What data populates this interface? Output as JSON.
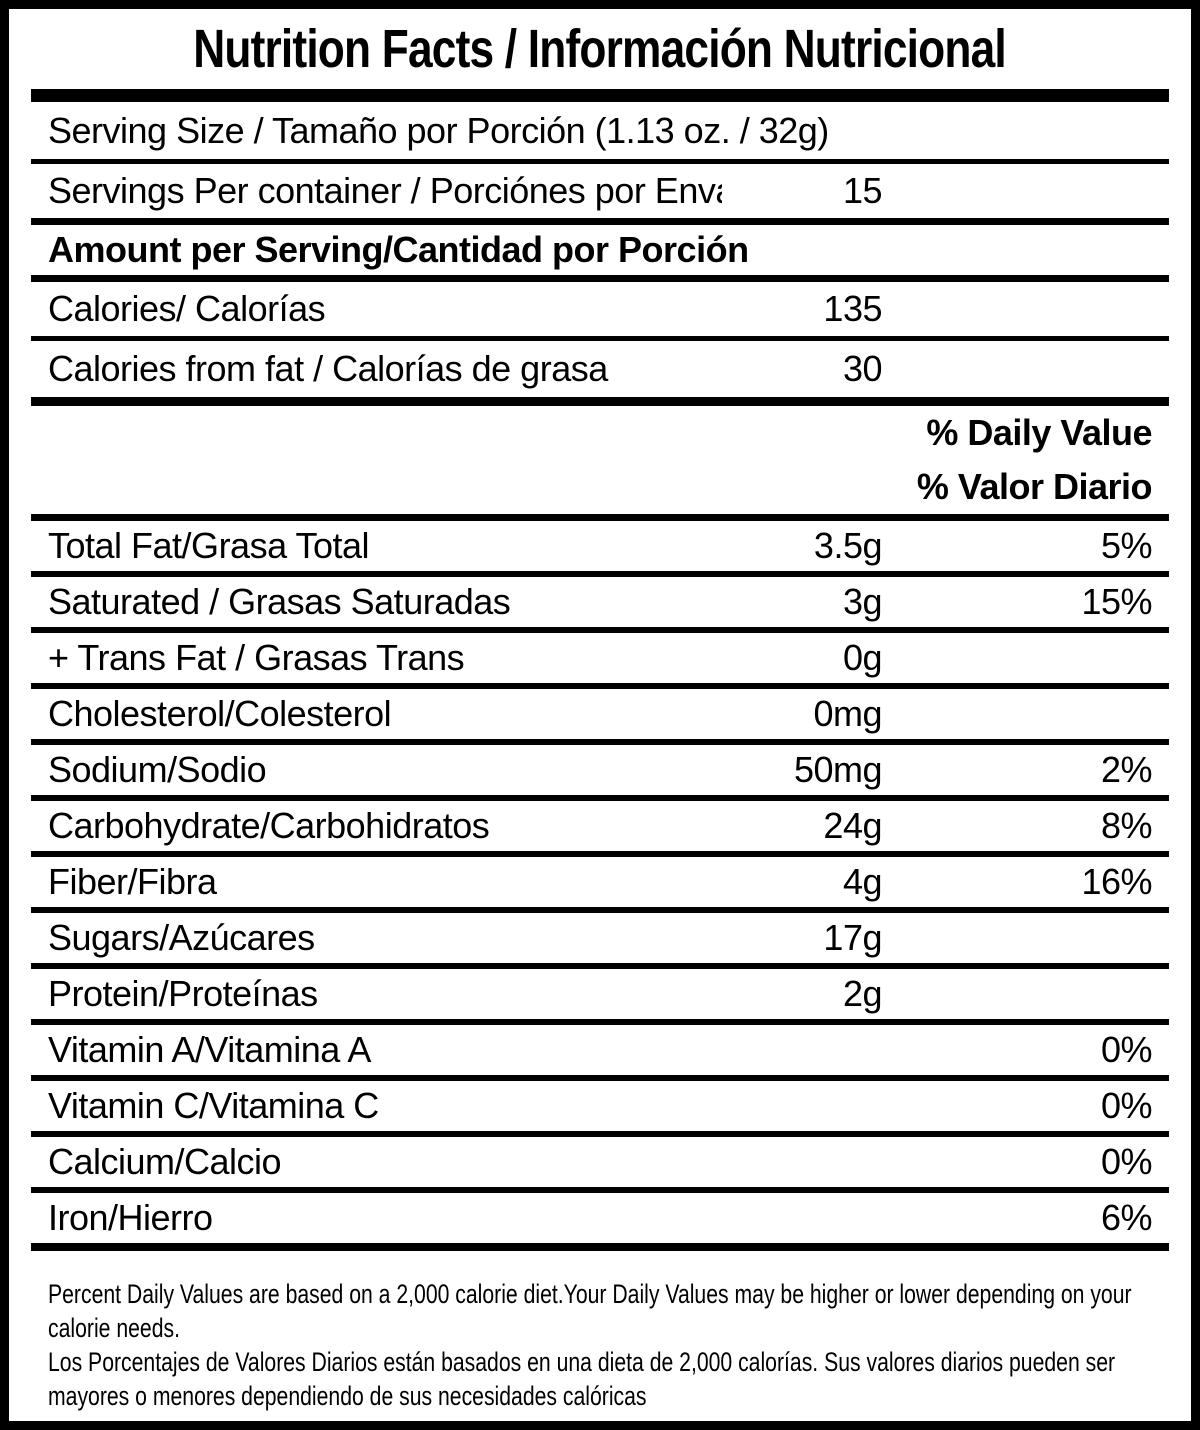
{
  "colors": {
    "text": "#000000",
    "background": "#ffffff"
  },
  "title": "Nutrition Facts / Información Nutricional",
  "serving": {
    "size_label": "Serving Size / Tamaño por Porción (1.13 oz. / 32g)",
    "per_container_label": "Servings Per container / Porciónes por Envase:",
    "per_container_value": "15"
  },
  "amount_header": "Amount per Serving/Cantidad por Porción",
  "calories": {
    "label": "Calories/ Calorías",
    "value": "135"
  },
  "calories_from_fat": {
    "label": "Calories from fat / Calorías de grasa",
    "value": "30"
  },
  "daily_value_header": {
    "en": "% Daily Value",
    "es": "% Valor Diario"
  },
  "nutrients": [
    {
      "label": "Total Fat/Grasa Total",
      "amount": "3.5g",
      "dv": "5%"
    },
    {
      "label": "Saturated / Grasas Saturadas",
      "amount": "3g",
      "dv": "15%"
    },
    {
      "label": "+ Trans Fat / Grasas Trans",
      "amount": "0g",
      "dv": ""
    },
    {
      "label": "Cholesterol/Colesterol",
      "amount": "0mg",
      "dv": ""
    },
    {
      "label": "Sodium/Sodio",
      "amount": "50mg",
      "dv": "2%"
    },
    {
      "label": "Carbohydrate/Carbohidratos",
      "amount": "24g",
      "dv": "8%"
    },
    {
      "label": "Fiber/Fibra",
      "amount": "4g",
      "dv": "16%"
    },
    {
      "label": "Sugars/Azúcares",
      "amount": "17g",
      "dv": ""
    },
    {
      "label": "Protein/Proteínas",
      "amount": "2g",
      "dv": ""
    },
    {
      "label": "Vitamin A/Vitamina A",
      "amount": "",
      "dv": "0%"
    },
    {
      "label": "Vitamin C/Vitamina C",
      "amount": "",
      "dv": "0%"
    },
    {
      "label": "Calcium/Calcio",
      "amount": "",
      "dv": "0%"
    },
    {
      "label": "Iron/Hierro",
      "amount": "",
      "dv": "6%"
    }
  ],
  "footnotes": {
    "en": "Percent Daily Values are based on a 2,000 calorie diet.Your Daily Values may be higher or lower depending on your calorie needs.",
    "es": "Los Porcentajes de Valores Diarios están basados en una dieta de 2,000 calorías. Sus valores diarios pueden ser mayores o menores dependiendo de sus necesidades calóricas"
  }
}
